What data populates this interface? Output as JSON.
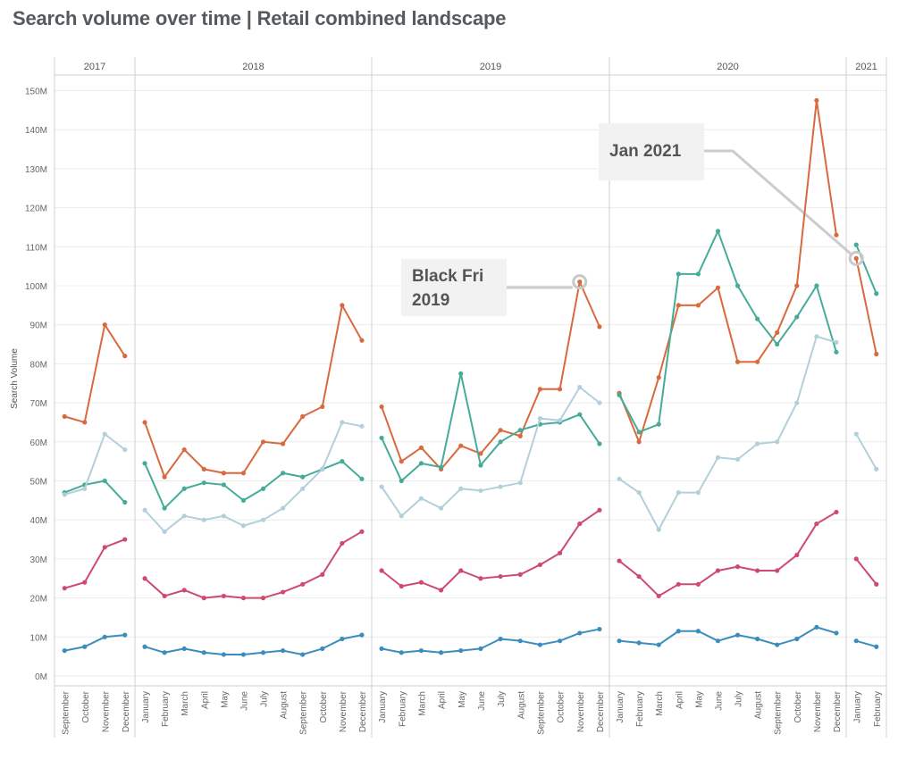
{
  "page": {
    "title": "Search volume over time | Retail combined landscape"
  },
  "colors": {
    "orange": "#d9693e",
    "teal": "#46ab99",
    "lightblue": "#b3d0da",
    "pink": "#cf4a6e",
    "blue": "#3a8dbd",
    "grid": "#ececec",
    "divider": "#cfcfcf",
    "axis_text": "#666666"
  },
  "annotations": [
    {
      "text": "Black Fri 2019",
      "month_index": 26,
      "series": "Orange"
    },
    {
      "text": "Jan 2021",
      "month_index": 40,
      "series": "Orange"
    }
  ],
  "chart_data": {
    "type": "line",
    "ylabel": "Search Volume",
    "ylim": [
      0,
      155000000
    ],
    "yticks": [
      0,
      10000000,
      20000000,
      30000000,
      40000000,
      50000000,
      60000000,
      70000000,
      80000000,
      90000000,
      100000000,
      110000000,
      120000000,
      130000000,
      140000000,
      150000000
    ],
    "ytick_labels": [
      "0M",
      "10M",
      "20M",
      "30M",
      "40M",
      "50M",
      "60M",
      "70M",
      "80M",
      "90M",
      "100M",
      "110M",
      "120M",
      "130M",
      "140M",
      "150M"
    ],
    "grid": true,
    "year_panels": [
      {
        "year": "2017",
        "months": [
          "September",
          "October",
          "November",
          "December"
        ]
      },
      {
        "year": "2018",
        "months": [
          "January",
          "February",
          "March",
          "April",
          "May",
          "June",
          "July",
          "August",
          "September",
          "October",
          "November",
          "December"
        ]
      },
      {
        "year": "2019",
        "months": [
          "January",
          "February",
          "March",
          "April",
          "May",
          "June",
          "July",
          "August",
          "September",
          "October",
          "November",
          "December"
        ]
      },
      {
        "year": "2020",
        "months": [
          "January",
          "February",
          "March",
          "April",
          "May",
          "June",
          "July",
          "August",
          "September",
          "October",
          "November",
          "December"
        ]
      },
      {
        "year": "2021",
        "months": [
          "January",
          "February"
        ]
      }
    ],
    "series": [
      {
        "color_key": "orange",
        "values": [
          66.5,
          65,
          90,
          82,
          65,
          51,
          58,
          53,
          52,
          52,
          60,
          59.5,
          66.5,
          69,
          95,
          86,
          69,
          55,
          58.5,
          53,
          59,
          57,
          63,
          61.5,
          73.5,
          73.5,
          101,
          89.5,
          72.5,
          60,
          76.5,
          95,
          95,
          99.5,
          80.5,
          80.5,
          88,
          100,
          147.5,
          113,
          107,
          82.5
        ]
      },
      {
        "color_key": "teal",
        "values": [
          47,
          49,
          50,
          44.5,
          54.5,
          43,
          48,
          49.5,
          49,
          45,
          48,
          52,
          51,
          53,
          55,
          50.5,
          61,
          50,
          54.5,
          53.5,
          77.5,
          54,
          60,
          63,
          64.5,
          65,
          67,
          59.5,
          72,
          62.5,
          64.5,
          103,
          103,
          114,
          100,
          91.5,
          85,
          92,
          100,
          83,
          110.5,
          98
        ]
      },
      {
        "color_key": "lightblue",
        "values": [
          46.5,
          48,
          62,
          58,
          42.5,
          37,
          41,
          40,
          41,
          38.5,
          40,
          43,
          48,
          53,
          65,
          64,
          48.5,
          41,
          45.5,
          43,
          48,
          47.5,
          48.5,
          49.5,
          66,
          65.5,
          74,
          70,
          50.5,
          47,
          37.5,
          47,
          47,
          56,
          55.5,
          59.5,
          60,
          70,
          87,
          85.5,
          62,
          53
        ]
      },
      {
        "color_key": "pink",
        "values": [
          22.5,
          24,
          33,
          35,
          25,
          20.5,
          22,
          20,
          20.5,
          20,
          20,
          21.5,
          23.5,
          26,
          34,
          37,
          27,
          23,
          24,
          22,
          27,
          25,
          25.5,
          26,
          28.5,
          31.5,
          39,
          42.5,
          29.5,
          25.5,
          20.5,
          23.5,
          23.5,
          27,
          28,
          27,
          27,
          31,
          39,
          42,
          30,
          23.5
        ]
      },
      {
        "color_key": "blue",
        "values": [
          6.5,
          7.5,
          10,
          10.5,
          7.5,
          6,
          7,
          6,
          5.5,
          5.5,
          6,
          6.5,
          5.5,
          7,
          9.5,
          10.5,
          7,
          6,
          6.5,
          6,
          6.5,
          7,
          9.5,
          9,
          8,
          9,
          11,
          12,
          9,
          8.5,
          8,
          11.5,
          11.5,
          9,
          10.5,
          9.5,
          8,
          9.5,
          12.5,
          11,
          9,
          7.5
        ]
      }
    ]
  }
}
